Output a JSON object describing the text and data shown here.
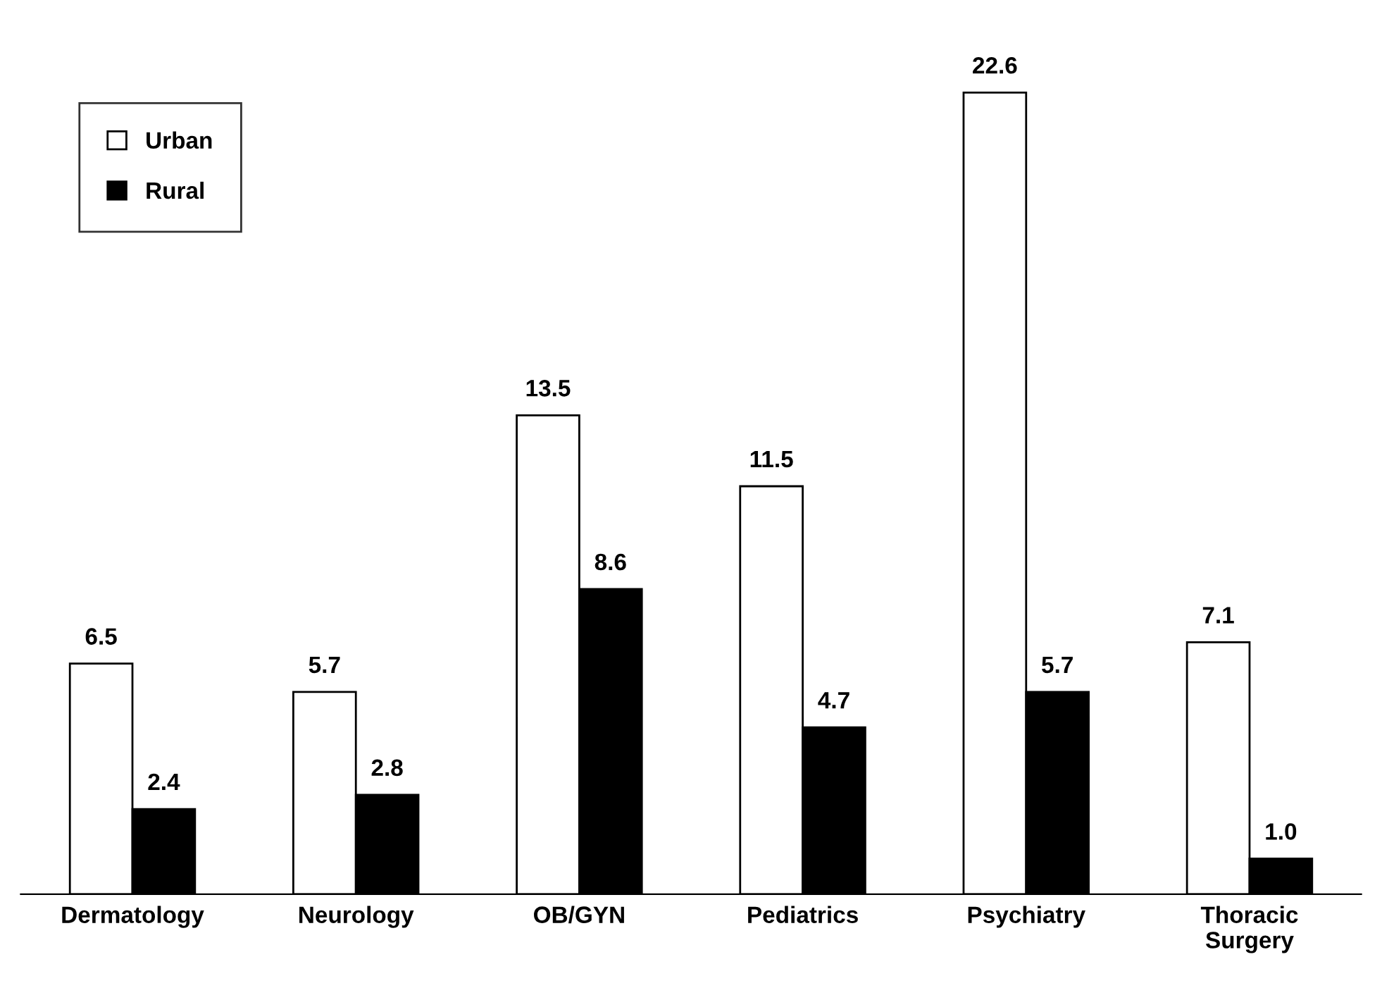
{
  "chart_data": {
    "type": "bar",
    "categories": [
      "Dermatology",
      "Neurology",
      "OB/GYN",
      "Pediatrics",
      "Psychiatry",
      "Thoracic\nSurgery"
    ],
    "series": [
      {
        "name": "Urban",
        "color": "#ffffff",
        "values": [
          6.5,
          5.7,
          13.5,
          11.5,
          22.6,
          7.1
        ],
        "value_labels": [
          "6.5",
          "5.7",
          "13.5",
          "11.5",
          "22.6",
          "7.1"
        ]
      },
      {
        "name": "Rural",
        "color": "#000000",
        "values": [
          2.4,
          2.8,
          8.6,
          4.7,
          5.7,
          1.0
        ],
        "value_labels": [
          "2.4",
          "2.8",
          "8.6",
          "4.7",
          "5.7",
          "1.0"
        ]
      }
    ],
    "legend": "top left",
    "grid": false
  }
}
